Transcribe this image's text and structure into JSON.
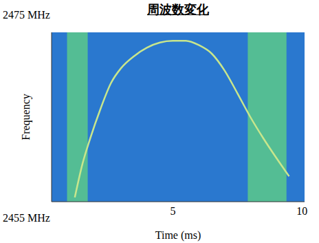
{
  "chart_data": {
    "type": "line",
    "title": "周波数変化",
    "x_label": "Time (ms)",
    "y_label": "Frequency",
    "x": [
      1.2,
      1.5,
      1.8,
      2.2,
      2.6,
      3.0,
      3.5,
      4.0,
      4.5,
      5.0,
      5.5,
      6.0,
      6.5,
      7.0,
      7.5,
      8.0,
      8.5,
      9.0,
      9.5
    ],
    "values": [
      2455.5,
      2459.5,
      2462.5,
      2466.0,
      2469.0,
      2470.8,
      2472.2,
      2473.2,
      2473.8,
      2474.0,
      2474.0,
      2473.5,
      2472.5,
      2470.5,
      2467.8,
      2465.0,
      2462.5,
      2460.2,
      2458.0
    ],
    "color": "#c8e68c",
    "xlim": [
      0.3,
      10.1
    ],
    "xticks": [
      5,
      10
    ],
    "ylim": [
      2455,
      2475
    ],
    "yticks": [
      {
        "value": 2455,
        "label": "2455 MHz"
      },
      {
        "value": 2475,
        "label": "2475 MHz"
      }
    ],
    "grid": false,
    "bands": [
      [
        0.9,
        1.7
      ],
      [
        7.9,
        9.4
      ]
    ]
  }
}
